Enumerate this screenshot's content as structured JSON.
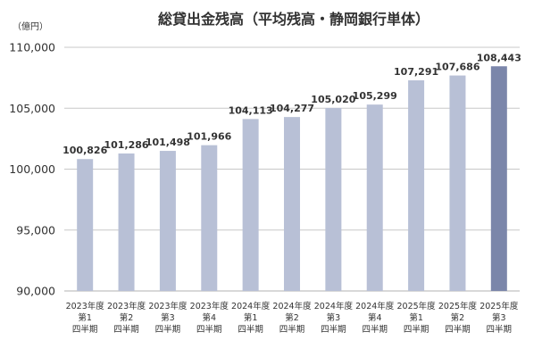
{
  "chart_data": {
    "type": "bar",
    "title": "総貸出金残高（平均残高・静岡銀行単体）",
    "unit_label": "（億円）",
    "categories": [
      [
        "2023年度",
        "第1",
        "四半期"
      ],
      [
        "2023年度",
        "第2",
        "四半期"
      ],
      [
        "2023年度",
        "第3",
        "四半期"
      ],
      [
        "2023年度",
        "第4",
        "四半期"
      ],
      [
        "2024年度",
        "第1",
        "四半期"
      ],
      [
        "2024年度",
        "第2",
        "四半期"
      ],
      [
        "2024年度",
        "第3",
        "四半期"
      ],
      [
        "2024年度",
        "第4",
        "四半期"
      ],
      [
        "2025年度",
        "第1",
        "四半期"
      ],
      [
        "2025年度",
        "第2",
        "四半期"
      ],
      [
        "2025年度",
        "第3",
        "四半期"
      ]
    ],
    "values": [
      100826,
      101286,
      101498,
      101966,
      104113,
      104277,
      105020,
      105299,
      107291,
      107686,
      108443
    ],
    "data_labels": [
      "100,826",
      "101,286",
      "101,498",
      "101,966",
      "104,113",
      "104,277",
      "105,020",
      "105,299",
      "107,291",
      "107,686",
      "108,443"
    ],
    "ylim": [
      90000,
      110000
    ],
    "yticks": [
      90000,
      95000,
      100000,
      105000,
      110000
    ],
    "ytick_labels": [
      "90,000",
      "95,000",
      "100,000",
      "105,000",
      "110,000"
    ],
    "grid": true,
    "bar_color": "#b8c0d6",
    "highlight_color": "#7b86aa",
    "highlight_index": 10
  }
}
